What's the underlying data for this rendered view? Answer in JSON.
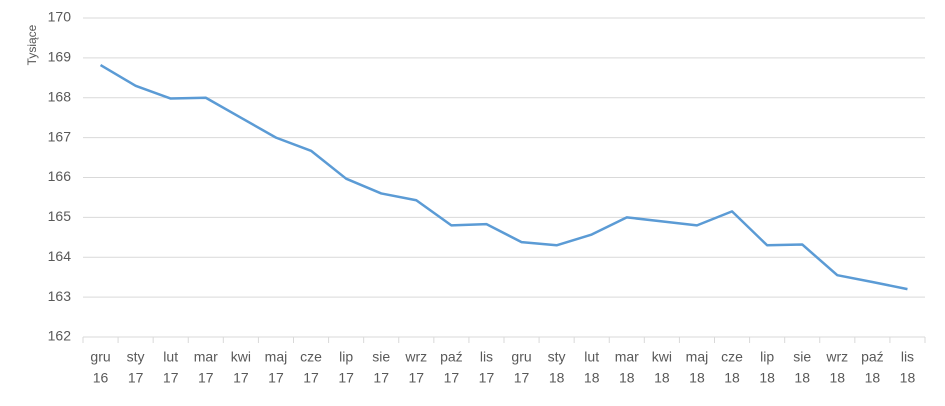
{
  "chart_data": {
    "type": "line",
    "y_label": "Tysiące",
    "categories": [
      [
        "gru",
        "16"
      ],
      [
        "sty",
        "17"
      ],
      [
        "lut",
        "17"
      ],
      [
        "mar",
        "17"
      ],
      [
        "kwi",
        "17"
      ],
      [
        "maj",
        "17"
      ],
      [
        "cze",
        "17"
      ],
      [
        "lip",
        "17"
      ],
      [
        "sie",
        "17"
      ],
      [
        "wrz",
        "17"
      ],
      [
        "paź",
        "17"
      ],
      [
        "lis",
        "17"
      ],
      [
        "gru",
        "17"
      ],
      [
        "sty",
        "18"
      ],
      [
        "lut",
        "18"
      ],
      [
        "mar",
        "18"
      ],
      [
        "kwi",
        "18"
      ],
      [
        "maj",
        "18"
      ],
      [
        "cze",
        "18"
      ],
      [
        "lip",
        "18"
      ],
      [
        "sie",
        "18"
      ],
      [
        "wrz",
        "18"
      ],
      [
        "paź",
        "18"
      ],
      [
        "lis",
        "18"
      ]
    ],
    "series": [
      {
        "color": "#5b9bd5",
        "values": [
          168.82,
          168.3,
          167.98,
          168.0,
          167.5,
          167.0,
          166.67,
          165.97,
          165.6,
          165.43,
          164.8,
          164.83,
          164.38,
          164.3,
          164.57,
          165.0,
          164.9,
          164.8,
          165.15,
          164.3,
          164.32,
          163.55,
          163.38,
          163.2
        ]
      }
    ],
    "ylim": [
      162,
      170
    ],
    "yticks": [
      162,
      163,
      164,
      165,
      166,
      167,
      168,
      169,
      170
    ],
    "grid": true
  }
}
